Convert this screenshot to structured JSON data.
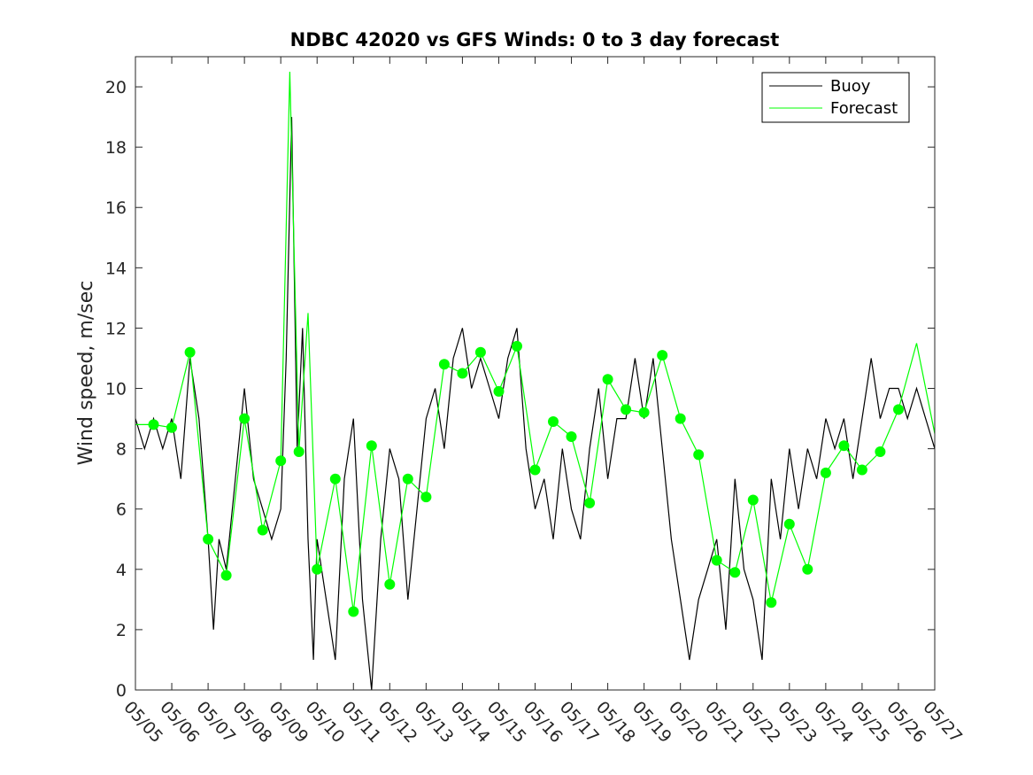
{
  "chart_data": {
    "type": "line",
    "title": "NDBC 42020 vs GFS Winds: 0 to 3 day forecast",
    "xlabel": "",
    "ylabel": "Wind speed, m/sec",
    "xlim": [
      "05/05",
      "05/27"
    ],
    "ylim": [
      0,
      21
    ],
    "x_ticks": [
      "05/05",
      "05/06",
      "05/07",
      "05/08",
      "05/09",
      "05/10",
      "05/11",
      "05/12",
      "05/13",
      "05/14",
      "05/15",
      "05/16",
      "05/17",
      "05/18",
      "05/19",
      "05/20",
      "05/21",
      "05/22",
      "05/23",
      "05/24",
      "05/25",
      "05/26",
      "05/27"
    ],
    "y_ticks": [
      0,
      2,
      4,
      6,
      8,
      10,
      12,
      14,
      16,
      18,
      20
    ],
    "grid": false,
    "legend": {
      "placement": "top-right",
      "entries": [
        "Buoy",
        "Forecast"
      ]
    },
    "colors": {
      "buoy": "#000000",
      "forecast": "#00ff00"
    },
    "series": [
      {
        "name": "Buoy",
        "x_days": [
          0,
          0.25,
          0.5,
          0.75,
          1,
          1.25,
          1.5,
          1.75,
          2,
          2.15,
          2.3,
          2.5,
          2.75,
          3,
          3.25,
          3.5,
          3.75,
          4,
          4.15,
          4.3,
          4.45,
          4.6,
          4.75,
          4.9,
          5,
          5.25,
          5.5,
          5.75,
          6,
          6.25,
          6.5,
          6.75,
          7,
          7.25,
          7.5,
          7.75,
          8,
          8.25,
          8.5,
          8.75,
          9,
          9.25,
          9.5,
          9.75,
          10,
          10.25,
          10.5,
          10.75,
          11,
          11.25,
          11.5,
          11.75,
          12,
          12.25,
          12.5,
          12.75,
          13,
          13.25,
          13.5,
          13.75,
          14,
          14.25,
          14.5,
          14.75,
          15,
          15.25,
          15.5,
          15.75,
          16,
          16.25,
          16.5,
          16.75,
          17,
          17.25,
          17.5,
          17.75,
          18,
          18.25,
          18.5,
          18.75,
          19,
          19.25,
          19.5,
          19.75,
          20,
          20.25,
          20.5,
          20.75,
          21,
          21.25,
          21.5,
          21.75,
          22
        ],
        "values": [
          9,
          8,
          9,
          8,
          9,
          7,
          11,
          9,
          5,
          2,
          5,
          4,
          7,
          10,
          7,
          6,
          5,
          6,
          11,
          19,
          8,
          12,
          5,
          1,
          5,
          3,
          1,
          7,
          9,
          3,
          0,
          5,
          8,
          7,
          3,
          6,
          9,
          10,
          8,
          11,
          12,
          10,
          11,
          10,
          9,
          11,
          12,
          8,
          6,
          7,
          5,
          8,
          6,
          5,
          8,
          10,
          7,
          9,
          9,
          11,
          9,
          11,
          8,
          5,
          3,
          1,
          3,
          4,
          5,
          2,
          7,
          4,
          3,
          1,
          7,
          5,
          8,
          6,
          8,
          7,
          9,
          8,
          9,
          7,
          9,
          11,
          9,
          10,
          10,
          9,
          10,
          9,
          8
        ]
      },
      {
        "name": "Forecast",
        "x_days": [
          0,
          0.5,
          1,
          1.5,
          2,
          2.5,
          3,
          3.5,
          4,
          4.25,
          4.5,
          4.75,
          5,
          5.5,
          6,
          6.5,
          7,
          7.5,
          8,
          8.5,
          9,
          9.5,
          10,
          10.5,
          11,
          11.5,
          12,
          12.5,
          13,
          13.5,
          14,
          14.5,
          15,
          15.5,
          16,
          16.5,
          17,
          17.5,
          18,
          18.5,
          19,
          19.5,
          20,
          20.5,
          21,
          21.5,
          22
        ],
        "values": [
          8.8,
          8.8,
          8.7,
          11.2,
          5.0,
          3.8,
          9.0,
          5.3,
          7.6,
          20.5,
          7.9,
          12.5,
          4.0,
          7.0,
          2.6,
          8.1,
          3.5,
          7.0,
          6.4,
          10.8,
          10.5,
          11.2,
          9.9,
          11.4,
          7.3,
          8.9,
          8.4,
          6.2,
          10.3,
          9.3,
          9.2,
          11.1,
          9.0,
          7.8,
          4.3,
          3.9,
          6.3,
          2.9,
          5.5,
          4.0,
          7.2,
          8.1,
          7.3,
          7.9,
          9.3,
          11.5,
          8.5
        ]
      }
    ],
    "markers": {
      "name": "Forecast analysis points",
      "x_days": [
        0.5,
        1,
        1.5,
        2,
        2.5,
        3,
        3.5,
        4,
        4.5,
        5,
        5.5,
        6,
        6.5,
        7,
        7.5,
        8,
        8.5,
        9,
        9.5,
        10,
        10.5,
        11,
        11.5,
        12,
        12.5,
        13,
        13.5,
        14,
        14.5,
        15,
        15.5,
        16,
        16.5,
        17,
        17.5,
        18,
        18.5,
        19,
        19.5,
        20,
        20.5,
        21
      ],
      "values": [
        8.8,
        8.7,
        11.2,
        5.0,
        3.8,
        9.0,
        5.3,
        7.6,
        7.9,
        4.0,
        7.0,
        2.6,
        8.1,
        3.5,
        7.0,
        6.4,
        10.8,
        10.5,
        11.2,
        9.9,
        11.4,
        7.3,
        8.9,
        8.4,
        6.2,
        10.3,
        9.3,
        9.2,
        11.1,
        9.0,
        7.8,
        4.3,
        3.9,
        6.3,
        2.9,
        5.5,
        4.0,
        7.2,
        8.1,
        7.3,
        7.9,
        9.3
      ]
    }
  }
}
